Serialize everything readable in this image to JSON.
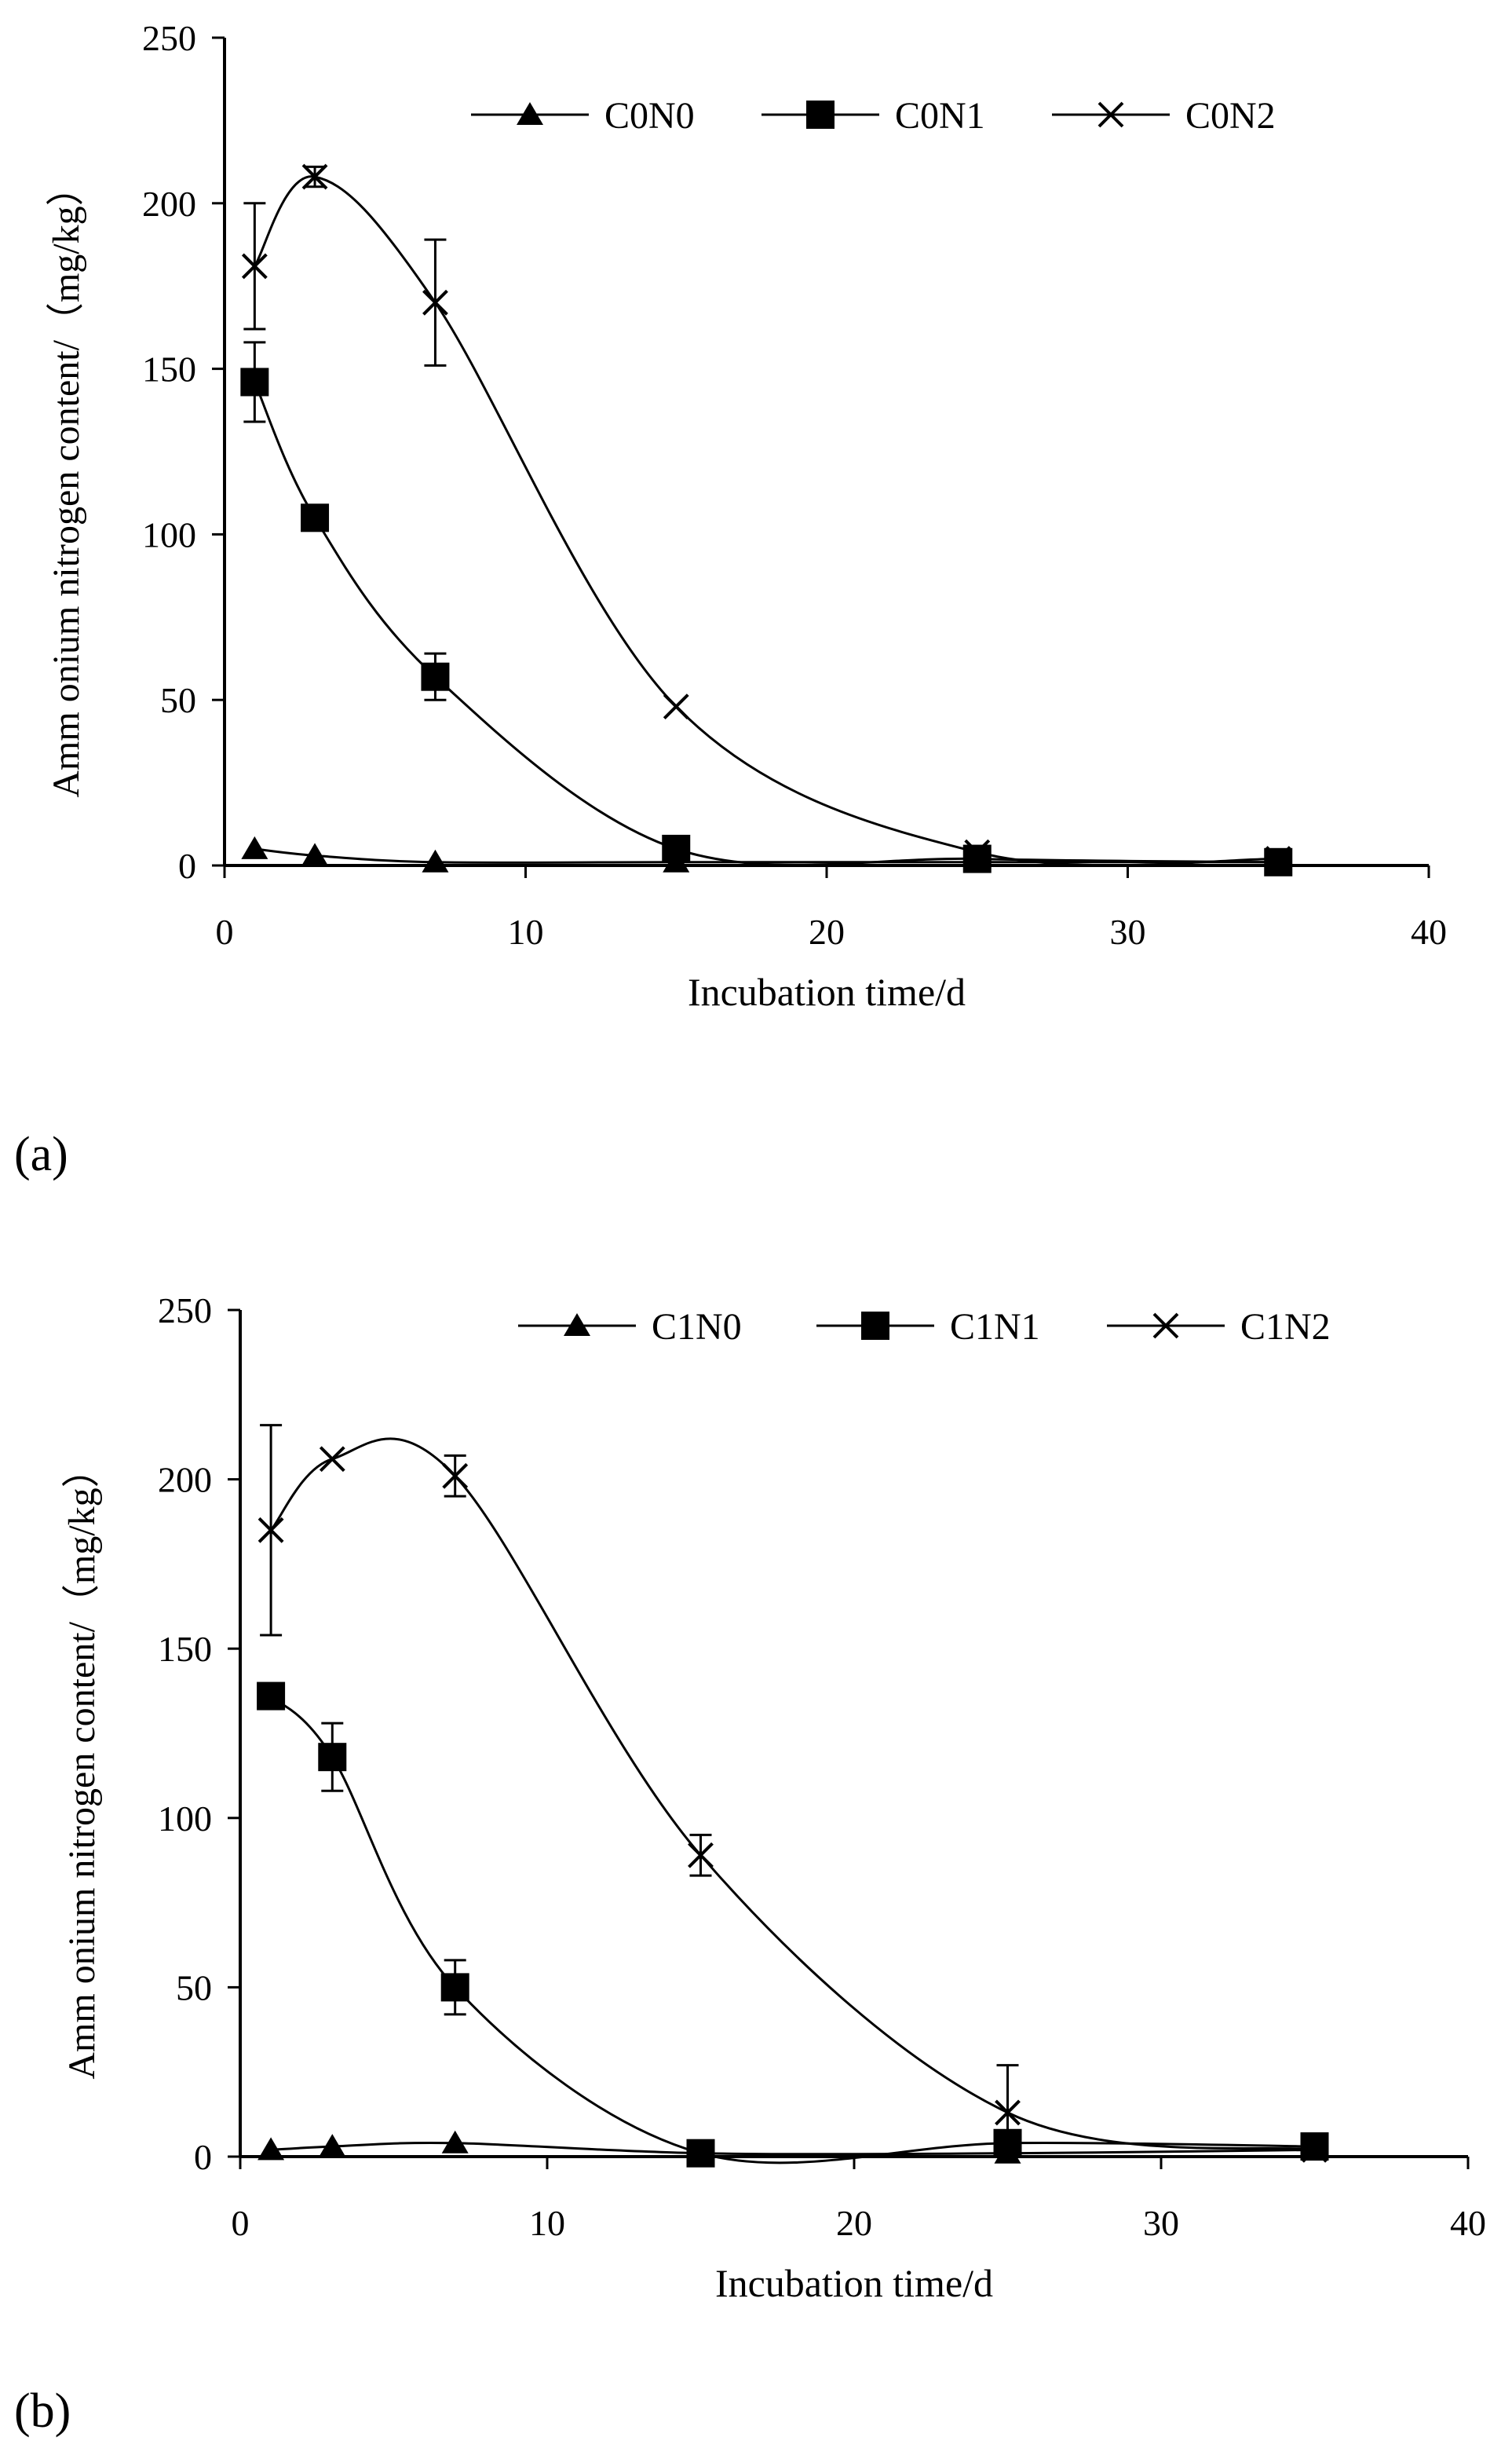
{
  "colors": {
    "ink": "#000000",
    "background": "#ffffff"
  },
  "chart_data": [
    {
      "panel_label": "(a)",
      "type": "line",
      "title": "",
      "xlabel": "Incubation time/d",
      "ylabel": "Amm onium nitrogen content/（mg/kg）",
      "xlim": [
        0,
        40
      ],
      "ylim": [
        0,
        250
      ],
      "xticks": [
        0,
        10,
        20,
        30,
        40
      ],
      "yticks": [
        0,
        50,
        100,
        150,
        200,
        250
      ],
      "grid": false,
      "legend_position": "top-right",
      "x": [
        1,
        3,
        7,
        15,
        25,
        35
      ],
      "series": [
        {
          "name": "C0N0",
          "marker": "triangle",
          "values": [
            5,
            3,
            1,
            1,
            1,
            1
          ],
          "errors": [
            0,
            0,
            0,
            0,
            0,
            0
          ]
        },
        {
          "name": "C0N1",
          "marker": "square",
          "values": [
            146,
            105,
            57,
            5,
            2,
            1
          ],
          "errors": [
            12,
            0,
            7,
            3,
            0,
            0
          ]
        },
        {
          "name": "C0N2",
          "marker": "x",
          "values": [
            181,
            208,
            170,
            48,
            4,
            2
          ],
          "errors": [
            19,
            3,
            19,
            0,
            0,
            0
          ]
        }
      ]
    },
    {
      "panel_label": "(b)",
      "type": "line",
      "title": "",
      "xlabel": "Incubation time/d",
      "ylabel": "Amm onium nitrogen content/（mg/kg）",
      "xlim": [
        0,
        40
      ],
      "ylim": [
        0,
        250
      ],
      "xticks": [
        0,
        10,
        20,
        30,
        40
      ],
      "yticks": [
        0,
        50,
        100,
        150,
        200,
        250
      ],
      "grid": false,
      "legend_position": "top-right",
      "x": [
        1,
        3,
        7,
        15,
        25,
        35
      ],
      "series": [
        {
          "name": "C1N0",
          "marker": "triangle",
          "values": [
            2,
            3,
            4,
            1,
            1,
            2
          ],
          "errors": [
            0,
            0,
            0,
            0,
            0,
            0
          ]
        },
        {
          "name": "C1N1",
          "marker": "square",
          "values": [
            136,
            118,
            50,
            1,
            4,
            3
          ],
          "errors": [
            0,
            10,
            8,
            0,
            0,
            0
          ]
        },
        {
          "name": "C1N2",
          "marker": "x",
          "values": [
            185,
            206,
            201,
            89,
            13,
            2
          ],
          "errors": [
            31,
            0,
            6,
            6,
            14,
            0
          ]
        }
      ]
    }
  ]
}
